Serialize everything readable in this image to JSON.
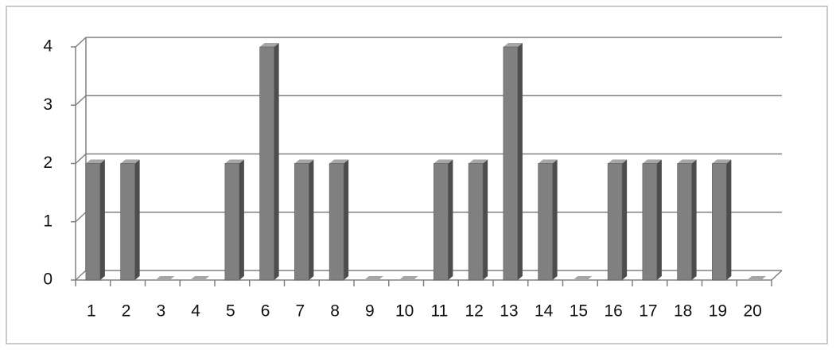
{
  "chart_data": {
    "type": "bar",
    "categories": [
      "1",
      "2",
      "3",
      "4",
      "5",
      "6",
      "7",
      "8",
      "9",
      "10",
      "11",
      "12",
      "13",
      "14",
      "15",
      "16",
      "17",
      "18",
      "19",
      "20"
    ],
    "values": [
      2,
      2,
      0,
      0,
      2,
      4,
      2,
      2,
      0,
      0,
      2,
      2,
      4,
      2,
      0,
      2,
      2,
      2,
      2,
      0
    ],
    "color": "#808080",
    "ylim": [
      0,
      4
    ],
    "yticks": [
      0,
      1,
      2,
      3,
      4
    ],
    "grid": true
  }
}
